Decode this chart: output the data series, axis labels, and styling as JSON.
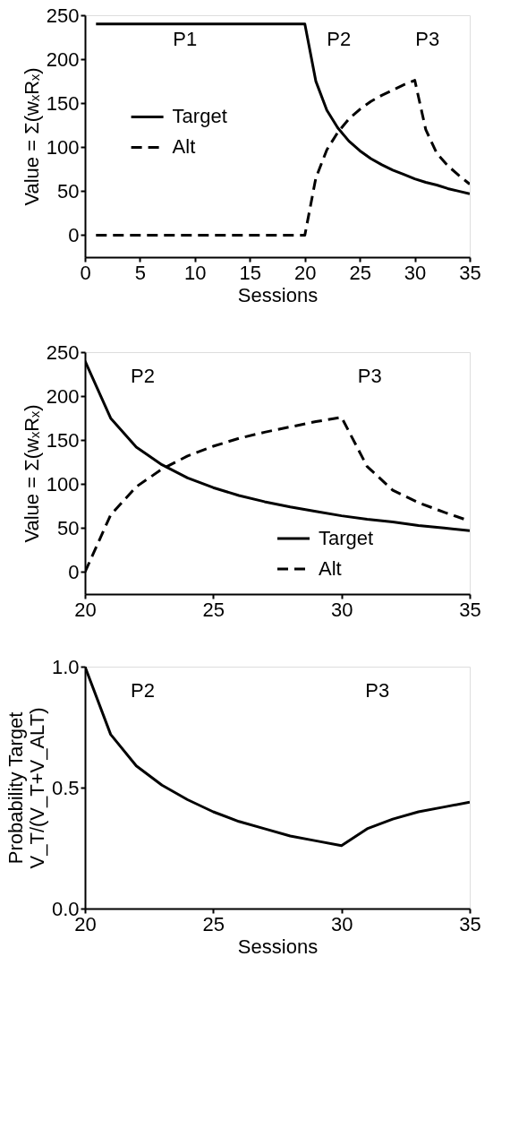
{
  "chart_data": [
    {
      "type": "line",
      "xlabel": "Sessions",
      "ylabel": "Value = Σ(wₓRₓ)",
      "xlim": [
        0,
        35
      ],
      "xticks": [
        0,
        5,
        10,
        15,
        20,
        25,
        30,
        35
      ],
      "ylim": [
        -25,
        250
      ],
      "yticks": [
        0,
        50,
        100,
        150,
        200,
        250
      ],
      "grid": false,
      "legend": "left",
      "marker": "none",
      "series": [
        {
          "name": "Target",
          "color": "#000000",
          "line_style": "solid",
          "x": [
            1,
            20,
            21,
            22,
            23,
            24,
            25,
            26,
            27,
            28,
            29,
            30,
            31,
            32,
            33,
            34,
            35
          ],
          "values": [
            240,
            240,
            175,
            142,
            122,
            107,
            96,
            87,
            80,
            74,
            69,
            64,
            60,
            57,
            53,
            50,
            47
          ]
        },
        {
          "name": "Alt",
          "color": "#000000",
          "line_style": "dashed",
          "x": [
            1,
            20,
            21,
            22,
            23,
            24,
            25,
            26,
            27,
            28,
            29,
            30,
            31,
            32,
            33,
            34,
            35
          ],
          "values": [
            0,
            0,
            65,
            97,
            117,
            132,
            143,
            152,
            159,
            165,
            171,
            176,
            120,
            93,
            79,
            68,
            58
          ]
        }
      ],
      "annotations": [
        "P1",
        "P2",
        "P3"
      ]
    },
    {
      "type": "line",
      "ylabel": "Value = Σ(wₓRₓ)",
      "xlim": [
        20,
        35
      ],
      "xticks": [
        20,
        25,
        30,
        35
      ],
      "ylim": [
        -25,
        250
      ],
      "yticks": [
        0,
        50,
        100,
        150,
        200,
        250
      ],
      "grid": false,
      "legend": "bottom",
      "marker": "none",
      "series": [
        {
          "name": "Target",
          "color": "#000000",
          "line_style": "solid",
          "x": [
            20,
            21,
            22,
            23,
            24,
            25,
            26,
            27,
            28,
            29,
            30,
            31,
            32,
            33,
            34,
            35
          ],
          "values": [
            240,
            175,
            142,
            122,
            107,
            96,
            87,
            80,
            74,
            69,
            64,
            60,
            57,
            53,
            50,
            47
          ]
        },
        {
          "name": "Alt",
          "color": "#000000",
          "line_style": "dashed",
          "x": [
            20,
            21,
            22,
            23,
            24,
            25,
            26,
            27,
            28,
            29,
            30,
            31,
            32,
            33,
            34,
            35
          ],
          "values": [
            0,
            65,
            97,
            117,
            132,
            143,
            152,
            159,
            165,
            171,
            176,
            120,
            93,
            79,
            68,
            58
          ]
        }
      ],
      "annotations": [
        "P2",
        "P3"
      ]
    },
    {
      "type": "line",
      "xlabel": "Sessions",
      "ylabel": "Probability Target\nV_T/(V_T+V_ALT)",
      "xlim": [
        20,
        35
      ],
      "xticks": [
        20,
        25,
        30,
        35
      ],
      "ylim": [
        0,
        1
      ],
      "yticks": [
        {
          "value": 0,
          "label": "0.0"
        },
        0.5,
        {
          "value": 1,
          "label": "1.0"
        }
      ],
      "grid": false,
      "legend": false,
      "marker": "none",
      "series": [
        {
          "color": "#000000",
          "line_style": "solid",
          "x": [
            20,
            21,
            22,
            23,
            24,
            25,
            26,
            27,
            28,
            29,
            30,
            31,
            32,
            33,
            34,
            35
          ],
          "values": [
            1.0,
            0.72,
            0.59,
            0.51,
            0.45,
            0.4,
            0.36,
            0.33,
            0.3,
            0.28,
            0.26,
            0.33,
            0.37,
            0.4,
            0.42,
            0.44
          ]
        }
      ],
      "annotations": [
        "P2",
        "P3"
      ]
    }
  ]
}
